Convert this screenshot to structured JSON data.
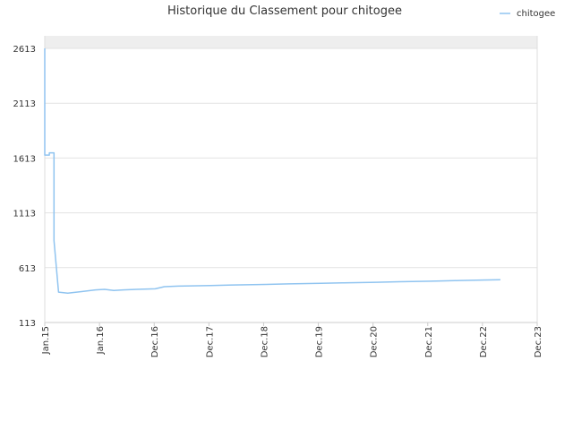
{
  "chart_data": {
    "type": "line",
    "title": "Historique du Classement pour chitogee",
    "xlabel": "",
    "ylabel": "",
    "legend": {
      "position": "top-right"
    },
    "grid": true,
    "y_inverted": true,
    "ylim": [
      2613,
      113
    ],
    "yticks": [
      113,
      613,
      1113,
      1613,
      2113,
      2613
    ],
    "xlim": [
      "2015-01",
      "2023-12"
    ],
    "xticks": [
      "Jan.15",
      "Jan.16",
      "Dec.16",
      "Dec.17",
      "Dec.18",
      "Dec.19",
      "Dec.20",
      "Dec.21",
      "Dec.22",
      "Dec.23"
    ],
    "series": [
      {
        "name": "chitogee",
        "color": "#90c4f0",
        "points": [
          [
            "2015-01",
            2613
          ],
          [
            "2015-01",
            2130
          ],
          [
            "2015-01",
            1640
          ],
          [
            "2015-02",
            1640
          ],
          [
            "2015-02",
            1660
          ],
          [
            "2015-03",
            1660
          ],
          [
            "2015-03",
            1130
          ],
          [
            "2015-03",
            860
          ],
          [
            "2015-04",
            390
          ],
          [
            "2015-06",
            380
          ],
          [
            "2015-09",
            395
          ],
          [
            "2015-12",
            410
          ],
          [
            "2016-02",
            415
          ],
          [
            "2016-04",
            405
          ],
          [
            "2016-06",
            410
          ],
          [
            "2016-09",
            415
          ],
          [
            "2017-01",
            420
          ],
          [
            "2017-03",
            440
          ],
          [
            "2017-06",
            445
          ],
          [
            "2018-01",
            450
          ],
          [
            "2018-06",
            455
          ],
          [
            "2019-01",
            460
          ],
          [
            "2019-06",
            465
          ],
          [
            "2020-01",
            470
          ],
          [
            "2020-06",
            475
          ],
          [
            "2021-01",
            480
          ],
          [
            "2021-06",
            485
          ],
          [
            "2022-01",
            490
          ],
          [
            "2022-06",
            495
          ],
          [
            "2022-12",
            500
          ],
          [
            "2023-04",
            503
          ]
        ]
      }
    ]
  }
}
